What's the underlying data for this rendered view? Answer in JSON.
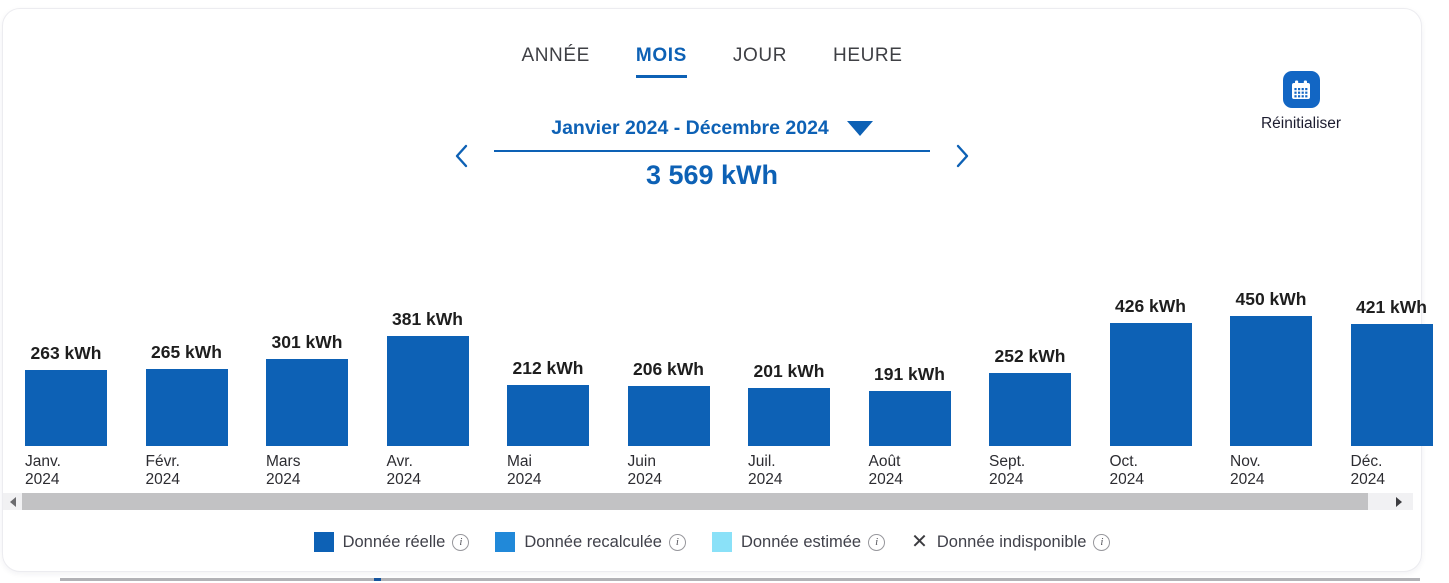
{
  "colors": {
    "primary_blue": "#0d61b5",
    "reset_button_blue": "#1266c4",
    "tab_inactive": "#3f4045",
    "scrollbar_thumb": "#c2c2c4",
    "scrollbar_track": "#f1f1f3"
  },
  "tabs": [
    {
      "label": "ANNÉE",
      "active": false
    },
    {
      "label": "MOIS",
      "active": true
    },
    {
      "label": "JOUR",
      "active": false
    },
    {
      "label": "HEURE",
      "active": false
    }
  ],
  "period": {
    "label": "Janvier 2024 - Décembre 2024",
    "total": "3 569 kWh"
  },
  "reset": {
    "label": "Réinitialiser",
    "icon": "calendar-icon"
  },
  "chart_data": {
    "type": "bar",
    "unit": "kWh",
    "categories": [
      "Janv. 2024",
      "Févr. 2024",
      "Mars 2024",
      "Avr. 2024",
      "Mai 2024",
      "Juin 2024",
      "Juil. 2024",
      "Août 2024",
      "Sept. 2024",
      "Oct. 2024",
      "Nov. 2024",
      "Déc. 2024"
    ],
    "category_lines": [
      [
        "Janv.",
        "2024"
      ],
      [
        "Févr.",
        "2024"
      ],
      [
        "Mars",
        "2024"
      ],
      [
        "Avr.",
        "2024"
      ],
      [
        "Mai",
        "2024"
      ],
      [
        "Juin",
        "2024"
      ],
      [
        "Juil.",
        "2024"
      ],
      [
        "Août",
        "2024"
      ],
      [
        "Sept.",
        "2024"
      ],
      [
        "Oct.",
        "2024"
      ],
      [
        "Nov.",
        "2024"
      ],
      [
        "Déc.",
        "2024"
      ]
    ],
    "values": [
      263,
      265,
      301,
      381,
      212,
      206,
      201,
      191,
      252,
      426,
      450,
      421
    ],
    "value_labels": [
      "263 kWh",
      "265 kWh",
      "301 kWh",
      "381 kWh",
      "212 kWh",
      "206 kWh",
      "201 kWh",
      "191 kWh",
      "252 kWh",
      "426 kWh",
      "450 kWh",
      "421 kWh"
    ],
    "title": "",
    "xlabel": "",
    "ylabel": "",
    "ylim": [
      0,
      450
    ],
    "grid": false,
    "legend_position": "bottom",
    "bar_color": "#0d61b5"
  },
  "legend": [
    {
      "label": "Donnée réelle",
      "swatch": "square",
      "color": "#0d61b5",
      "info_icon": "i"
    },
    {
      "label": "Donnée recalculée",
      "swatch": "square",
      "color": "#2189d9",
      "info_icon": "i"
    },
    {
      "label": "Donnée estimée",
      "swatch": "square",
      "color": "#8ae1f8",
      "info_icon": "i"
    },
    {
      "label": "Donnée indisponible",
      "swatch": "cross",
      "cross_glyph": "✕",
      "info_icon": "i"
    }
  ]
}
